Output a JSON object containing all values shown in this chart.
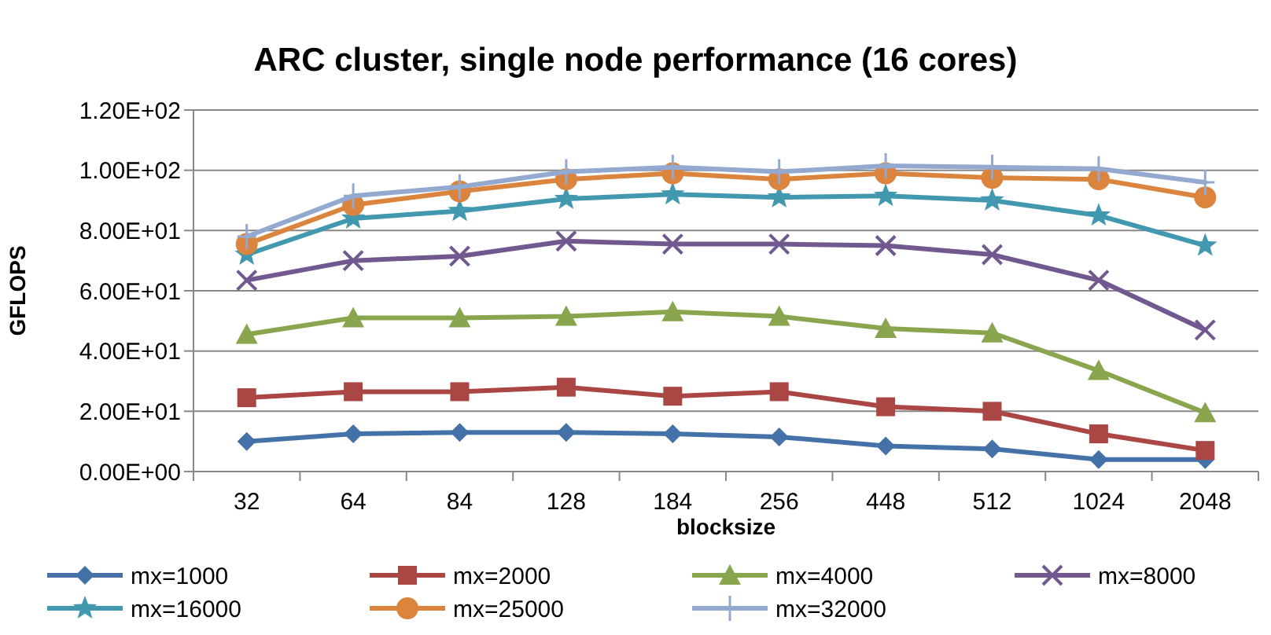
{
  "chart_data": {
    "type": "line",
    "title": "ARC cluster, single node performance (16 cores)",
    "xlabel": "blocksize",
    "ylabel": "GFLOPS",
    "categories": [
      "32",
      "64",
      "84",
      "128",
      "184",
      "256",
      "448",
      "512",
      "1024",
      "2048"
    ],
    "ylim": [
      0,
      120
    ],
    "yticks": [
      {
        "value": 0,
        "label": "0.00E+00"
      },
      {
        "value": 20,
        "label": "2.00E+01"
      },
      {
        "value": 40,
        "label": "4.00E+01"
      },
      {
        "value": 60,
        "label": "6.00E+01"
      },
      {
        "value": 80,
        "label": "8.00E+01"
      },
      {
        "value": 100,
        "label": "1.00E+02"
      },
      {
        "value": 120,
        "label": "1.20E+02"
      }
    ],
    "grid": "y",
    "legend": "bottom",
    "series": [
      {
        "name": "mx=1000",
        "color": "#4472a8",
        "marker": "diamond",
        "values": [
          10,
          12.5,
          13,
          13,
          12.5,
          11.5,
          8.5,
          7.5,
          4,
          4
        ]
      },
      {
        "name": "mx=2000",
        "color": "#aa4643",
        "marker": "square",
        "values": [
          24.5,
          26.5,
          26.5,
          28,
          25,
          26.5,
          21.5,
          20,
          12.5,
          7
        ]
      },
      {
        "name": "mx=4000",
        "color": "#89a54e",
        "marker": "triangle",
        "values": [
          45.5,
          51,
          51,
          51.5,
          53,
          51.5,
          47.5,
          46,
          33.5,
          19.5
        ]
      },
      {
        "name": "mx=8000",
        "color": "#71588f",
        "marker": "cross",
        "values": [
          63.5,
          70,
          71.5,
          76.5,
          75.5,
          75.5,
          75,
          72,
          63.5,
          47
        ]
      },
      {
        "name": "mx=16000",
        "color": "#4198af",
        "marker": "star",
        "values": [
          72,
          84,
          86.5,
          90.5,
          92,
          91,
          91.5,
          90,
          85,
          75
        ]
      },
      {
        "name": "mx=25000",
        "color": "#db843d",
        "marker": "circle",
        "values": [
          75.5,
          88.5,
          93,
          97,
          99,
          97,
          99,
          97.5,
          97,
          91
        ]
      },
      {
        "name": "mx=32000",
        "color": "#93a9cf",
        "marker": "plus",
        "values": [
          78,
          91.5,
          94.5,
          99.5,
          101,
          99.5,
          101.5,
          101,
          100.5,
          96
        ]
      }
    ]
  }
}
